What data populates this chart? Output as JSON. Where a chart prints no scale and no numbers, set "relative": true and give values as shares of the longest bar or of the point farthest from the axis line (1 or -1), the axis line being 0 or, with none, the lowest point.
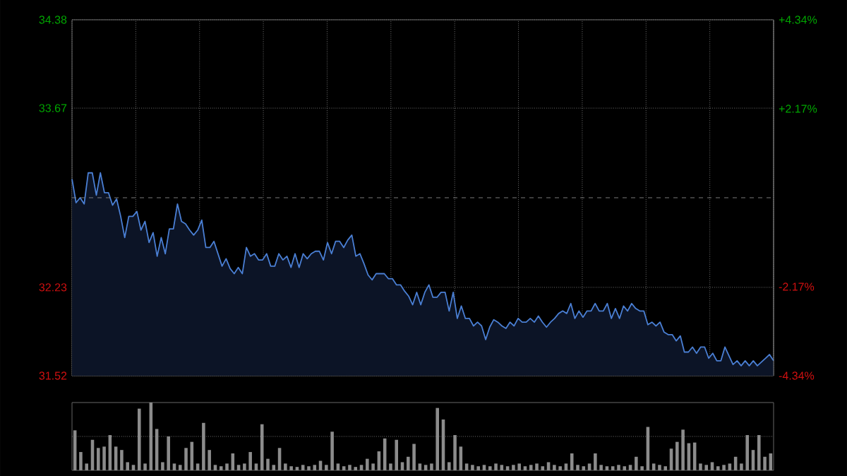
{
  "chart_data": [
    {
      "type": "area",
      "categories": [
        null,
        null,
        null,
        null,
        null,
        null,
        null,
        null,
        null,
        null,
        null,
        null,
        null,
        null,
        null,
        null,
        null,
        null,
        null,
        null,
        null,
        null,
        null,
        null,
        null,
        null,
        null,
        null,
        null,
        null,
        null,
        null,
        null,
        null,
        null,
        null,
        null,
        null,
        null,
        null,
        null,
        null,
        null,
        null,
        null,
        null,
        null,
        null,
        null,
        null,
        null,
        null,
        null,
        null,
        null,
        null,
        null,
        null,
        null,
        null,
        null,
        null,
        null,
        null,
        null,
        null,
        null,
        null,
        null,
        null,
        null,
        null,
        null,
        null,
        null,
        null,
        null,
        null,
        null,
        null,
        null,
        null,
        null,
        null,
        null,
        null,
        null,
        null,
        null,
        null,
        null,
        null,
        null,
        null,
        null,
        null,
        null,
        null,
        null,
        null,
        null,
        null,
        null,
        null,
        null,
        null,
        null,
        null,
        null,
        null,
        null,
        null,
        null,
        null,
        null,
        null,
        null,
        null,
        null,
        null,
        null,
        null,
        null,
        null,
        null,
        null,
        null,
        null,
        null,
        null,
        null,
        null,
        null,
        null,
        null,
        null,
        null,
        null,
        null,
        null,
        null,
        null,
        null,
        null,
        null,
        null,
        null,
        null,
        null,
        null,
        null,
        null,
        null,
        null,
        null,
        null,
        null,
        null,
        null,
        null,
        null,
        null,
        null,
        null,
        null,
        null,
        null,
        null,
        null,
        null,
        null,
        null,
        null,
        null
      ],
      "series": [
        {
          "color": "#4a7fd4",
          "values": [
            33.1,
            32.91,
            32.95,
            32.9,
            33.15,
            33.15,
            32.97,
            33.15,
            32.99,
            32.99,
            32.89,
            32.94,
            32.8,
            32.63,
            32.8,
            32.8,
            32.84,
            32.69,
            32.76,
            32.59,
            32.67,
            32.48,
            32.63,
            32.5,
            32.7,
            32.7,
            32.9,
            32.76,
            32.74,
            32.69,
            32.65,
            32.69,
            32.77,
            32.55,
            32.55,
            32.6,
            32.5,
            32.4,
            32.46,
            32.38,
            32.34,
            32.39,
            32.34,
            32.55,
            32.48,
            32.5,
            32.45,
            32.45,
            32.5,
            32.4,
            32.4,
            32.5,
            32.45,
            32.48,
            32.39,
            32.5,
            32.39,
            32.5,
            32.46,
            32.5,
            32.52,
            32.52,
            32.45,
            32.59,
            32.5,
            32.6,
            32.6,
            32.55,
            32.61,
            32.65,
            32.48,
            32.5,
            32.42,
            32.33,
            32.29,
            32.34,
            32.34,
            32.34,
            32.3,
            32.3,
            32.25,
            32.25,
            32.2,
            32.16,
            32.09,
            32.19,
            32.09,
            32.19,
            32.25,
            32.15,
            32.15,
            32.19,
            32.19,
            32.04,
            32.19,
            31.98,
            32.08,
            31.98,
            31.98,
            31.92,
            31.95,
            31.92,
            31.81,
            31.91,
            31.97,
            31.95,
            31.92,
            31.9,
            31.95,
            31.92,
            31.98,
            31.95,
            31.95,
            31.98,
            31.95,
            32.0,
            31.95,
            31.91,
            31.95,
            31.98,
            32.02,
            32.04,
            32.02,
            32.1,
            31.98,
            32.04,
            31.99,
            32.04,
            32.04,
            32.1,
            32.04,
            32.04,
            32.1,
            31.98,
            32.06,
            31.98,
            32.08,
            32.04,
            32.1,
            32.06,
            32.04,
            32.04,
            31.93,
            31.95,
            31.92,
            31.95,
            31.87,
            31.85,
            31.85,
            31.8,
            31.84,
            31.71,
            31.71,
            31.75,
            31.7,
            31.75,
            31.75,
            31.66,
            31.7,
            31.64,
            31.64,
            31.75,
            31.68,
            31.61,
            31.64,
            31.6,
            31.64,
            31.6,
            31.64,
            31.6,
            31.63,
            31.66,
            31.69,
            31.64
          ]
        }
      ],
      "ylim": [
        31.52,
        34.38
      ],
      "yticks": [
        31.52,
        32.23,
        33.67,
        34.38
      ],
      "y2lim": [
        -4.34,
        4.34
      ],
      "y2ticks": [
        {
          "value": -4.34,
          "label": "-4.34%"
        },
        {
          "value": -2.17,
          "label": "-2.17%"
        },
        {
          "value": 2.17,
          "label": "+2.17%"
        },
        {
          "value": 4.34,
          "label": "+4.34%"
        }
      ],
      "ref_lines": [
        {
          "axis": "y",
          "value": 32.95,
          "line_style": "dashed"
        }
      ],
      "grid": true
    },
    {
      "type": "bar",
      "relative": true,
      "color": "#8c8c8c",
      "ref_lines": [
        {
          "axis": "y",
          "value": 0.5,
          "line_style": "dotted"
        }
      ],
      "categories": [
        null,
        null,
        null,
        null,
        null,
        null,
        null,
        null,
        null,
        null,
        null,
        null,
        null,
        null,
        null,
        null,
        null,
        null,
        null,
        null,
        null,
        null,
        null,
        null,
        null,
        null,
        null,
        null,
        null,
        null,
        null,
        null,
        null,
        null,
        null,
        null,
        null,
        null,
        null,
        null,
        null,
        null,
        null,
        null,
        null,
        null,
        null,
        null,
        null,
        null,
        null,
        null,
        null,
        null,
        null,
        null,
        null,
        null,
        null,
        null,
        null,
        null,
        null,
        null,
        null,
        null,
        null,
        null,
        null,
        null,
        null,
        null,
        null,
        null,
        null,
        null,
        null,
        null,
        null,
        null,
        null,
        null,
        null,
        null,
        null,
        null,
        null,
        null,
        null,
        null,
        null,
        null,
        null,
        null,
        null,
        null,
        null,
        null,
        null,
        null,
        null,
        null,
        null,
        null,
        null,
        null,
        null,
        null,
        null,
        null,
        null,
        null,
        null,
        null,
        null,
        null,
        null,
        null,
        null,
        null
      ],
      "values": [
        0.59,
        0.27,
        0.1,
        0.45,
        0.33,
        0.35,
        0.52,
        0.35,
        0.3,
        0.12,
        0.08,
        0.91,
        0.1,
        1.0,
        0.61,
        0.12,
        0.5,
        0.1,
        0.08,
        0.33,
        0.42,
        0.1,
        0.7,
        0.3,
        0.08,
        0.06,
        0.1,
        0.25,
        0.08,
        0.1,
        0.27,
        0.1,
        0.68,
        0.17,
        0.08,
        0.33,
        0.1,
        0.06,
        0.05,
        0.08,
        0.06,
        0.08,
        0.14,
        0.08,
        0.57,
        0.1,
        0.06,
        0.08,
        0.05,
        0.08,
        0.17,
        0.1,
        0.28,
        0.47,
        0.1,
        0.45,
        0.12,
        0.2,
        0.39,
        0.1,
        0.08,
        0.1,
        0.92,
        0.75,
        0.12,
        0.52,
        0.35,
        0.1,
        0.08,
        0.06,
        0.08,
        0.06,
        0.1,
        0.08,
        0.06,
        0.08,
        0.1,
        0.06,
        0.08,
        0.1,
        0.06,
        0.12,
        0.08,
        0.06,
        0.1,
        0.25,
        0.08,
        0.06,
        0.1,
        0.25,
        0.08,
        0.06,
        0.06,
        0.08,
        0.06,
        0.08,
        0.2,
        0.06,
        0.64,
        0.1,
        0.08,
        0.06,
        0.32,
        0.42,
        0.6,
        0.4,
        0.41,
        0.1,
        0.08,
        0.12,
        0.06,
        0.08,
        0.1,
        0.2,
        0.1,
        0.52,
        0.3,
        0.52,
        0.2,
        0.25
      ]
    }
  ]
}
